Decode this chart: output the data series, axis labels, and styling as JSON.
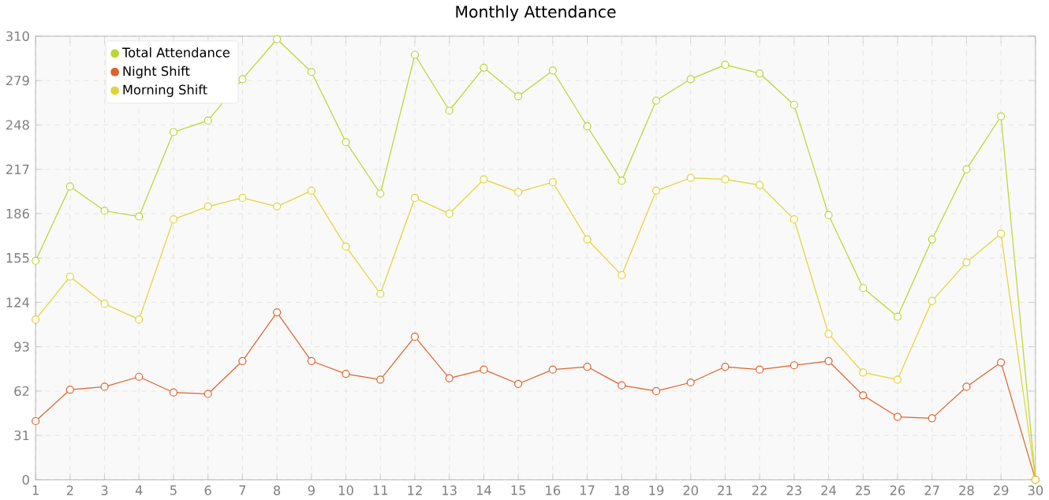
{
  "chart_data": {
    "type": "line",
    "title": "Monthly Attendance",
    "categories": [
      "1",
      "2",
      "3",
      "4",
      "5",
      "6",
      "7",
      "8",
      "9",
      "10",
      "11",
      "12",
      "13",
      "14",
      "15",
      "16",
      "17",
      "18",
      "19",
      "20",
      "21",
      "22",
      "23",
      "24",
      "25",
      "26",
      "27",
      "28",
      "29",
      "30"
    ],
    "series": [
      {
        "name": "Total Attendance",
        "color": "#bcd532",
        "values": [
          153,
          205,
          188,
          184,
          243,
          251,
          280,
          308,
          285,
          236,
          200,
          297,
          258,
          288,
          268,
          286,
          247,
          209,
          265,
          280,
          290,
          284,
          262,
          185,
          134,
          114,
          168,
          217,
          254,
          0
        ]
      },
      {
        "name": "Night Shift",
        "color": "#e0622d",
        "values": [
          41,
          63,
          65,
          72,
          61,
          60,
          83,
          117,
          83,
          74,
          70,
          100,
          71,
          77,
          67,
          77,
          79,
          66,
          62,
          68,
          79,
          77,
          80,
          83,
          59,
          44,
          43,
          65,
          82,
          0
        ]
      },
      {
        "name": "Morning Shift",
        "color": "#e0d533",
        "values": [
          112,
          142,
          123,
          112,
          182,
          191,
          197,
          191,
          202,
          163,
          130,
          197,
          186,
          210,
          201,
          208,
          168,
          143,
          202,
          211,
          210,
          206,
          182,
          102,
          75,
          70,
          125,
          152,
          172,
          0
        ]
      }
    ],
    "ylim": [
      0,
      310
    ],
    "yticks": [
      0,
      31,
      62,
      93,
      124,
      155,
      186,
      217,
      248,
      279,
      310
    ],
    "grid": true,
    "legend": "top left",
    "marker": "circle",
    "line_style": "solid"
  }
}
